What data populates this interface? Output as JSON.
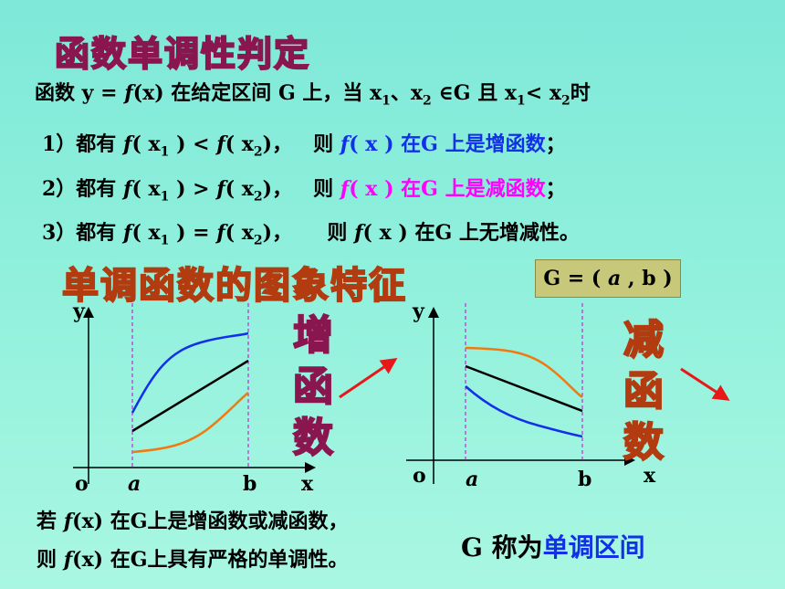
{
  "main_title": "函数单调性判定",
  "definition": {
    "prefix": "函数 y =",
    "fx": "f",
    "mid": "(x) 在给定区间 G 上，当 x",
    "s1": "1",
    "sep": "、x",
    "s2": "2",
    "in_g": "∈G 且 x",
    "s1b": "1",
    "lt": "< x",
    "s2b": "2",
    "tail": "时"
  },
  "cases": [
    {
      "num": "1）都有",
      "cond": ") <",
      "cond2": ")，",
      "then": "则",
      "result": "在G 上是增函数",
      "end": "；"
    },
    {
      "num": "2）都有",
      "cond": ") >",
      "cond2": ")，",
      "then": "则",
      "result": "在G 上是减函数",
      "end": "；"
    },
    {
      "num": "3）都有",
      "cond": ") =",
      "cond2": ")，",
      "then": "则",
      "result": "在G 上无增减性。",
      "end": ""
    }
  ],
  "f_text": "f",
  "x_open": "( x",
  "x_close": ")",
  "sub1": "1",
  "sub2": "2",
  "sub_title": "单调函数的图象特征",
  "interval_box": {
    "g": "G = (",
    "a": "a",
    "rest": ", b )"
  },
  "left_graph": {
    "y": "y",
    "o": "o",
    "a": "a",
    "b": "b",
    "x": "x",
    "label": "增函数"
  },
  "right_graph": {
    "y": "y",
    "o": "o",
    "a": "a",
    "b": "b",
    "x": "x",
    "label": "减函数"
  },
  "colors": {
    "blue": "#1230e8",
    "black": "#000000",
    "orange": "#f07a10",
    "arrow": "#e81818",
    "guide": "#cc00cc"
  },
  "footer": {
    "line1_pre": "若",
    "line1_f": "f",
    "line1_post": "(x) 在G上是增函数或减函数，",
    "line2_pre": "则",
    "line2_f": "f",
    "line2_post": "(x) 在G上具有严格的单调性。",
    "interval_pre": "G 称为",
    "interval_term": "单调区间"
  }
}
